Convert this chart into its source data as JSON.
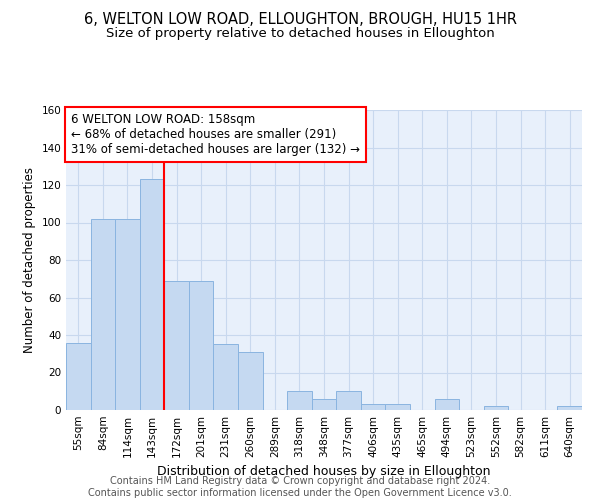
{
  "title": "6, WELTON LOW ROAD, ELLOUGHTON, BROUGH, HU15 1HR",
  "subtitle": "Size of property relative to detached houses in Elloughton",
  "xlabel": "Distribution of detached houses by size in Elloughton",
  "ylabel": "Number of detached properties",
  "bar_labels": [
    "55sqm",
    "84sqm",
    "114sqm",
    "143sqm",
    "172sqm",
    "201sqm",
    "231sqm",
    "260sqm",
    "289sqm",
    "318sqm",
    "348sqm",
    "377sqm",
    "406sqm",
    "435sqm",
    "465sqm",
    "494sqm",
    "523sqm",
    "552sqm",
    "582sqm",
    "611sqm",
    "640sqm"
  ],
  "bar_values": [
    36,
    102,
    102,
    123,
    69,
    69,
    35,
    31,
    0,
    10,
    6,
    10,
    3,
    3,
    0,
    6,
    0,
    2,
    0,
    0,
    2
  ],
  "bar_color": "#c5d9f1",
  "bar_edge_color": "#8ab4e0",
  "vline_color": "red",
  "vline_pos": 3.5,
  "annotation_text": "6 WELTON LOW ROAD: 158sqm\n← 68% of detached houses are smaller (291)\n31% of semi-detached houses are larger (132) →",
  "annotation_box_color": "white",
  "annotation_box_edge": "red",
  "ylim": [
    0,
    160
  ],
  "yticks": [
    0,
    20,
    40,
    60,
    80,
    100,
    120,
    140,
    160
  ],
  "background_color": "#e8f0fb",
  "grid_color": "#c8d8ee",
  "footer": "Contains HM Land Registry data © Crown copyright and database right 2024.\nContains public sector information licensed under the Open Government Licence v3.0.",
  "title_fontsize": 10.5,
  "subtitle_fontsize": 9.5,
  "xlabel_fontsize": 9,
  "ylabel_fontsize": 8.5,
  "tick_fontsize": 7.5,
  "annotation_fontsize": 8.5,
  "footer_fontsize": 7
}
